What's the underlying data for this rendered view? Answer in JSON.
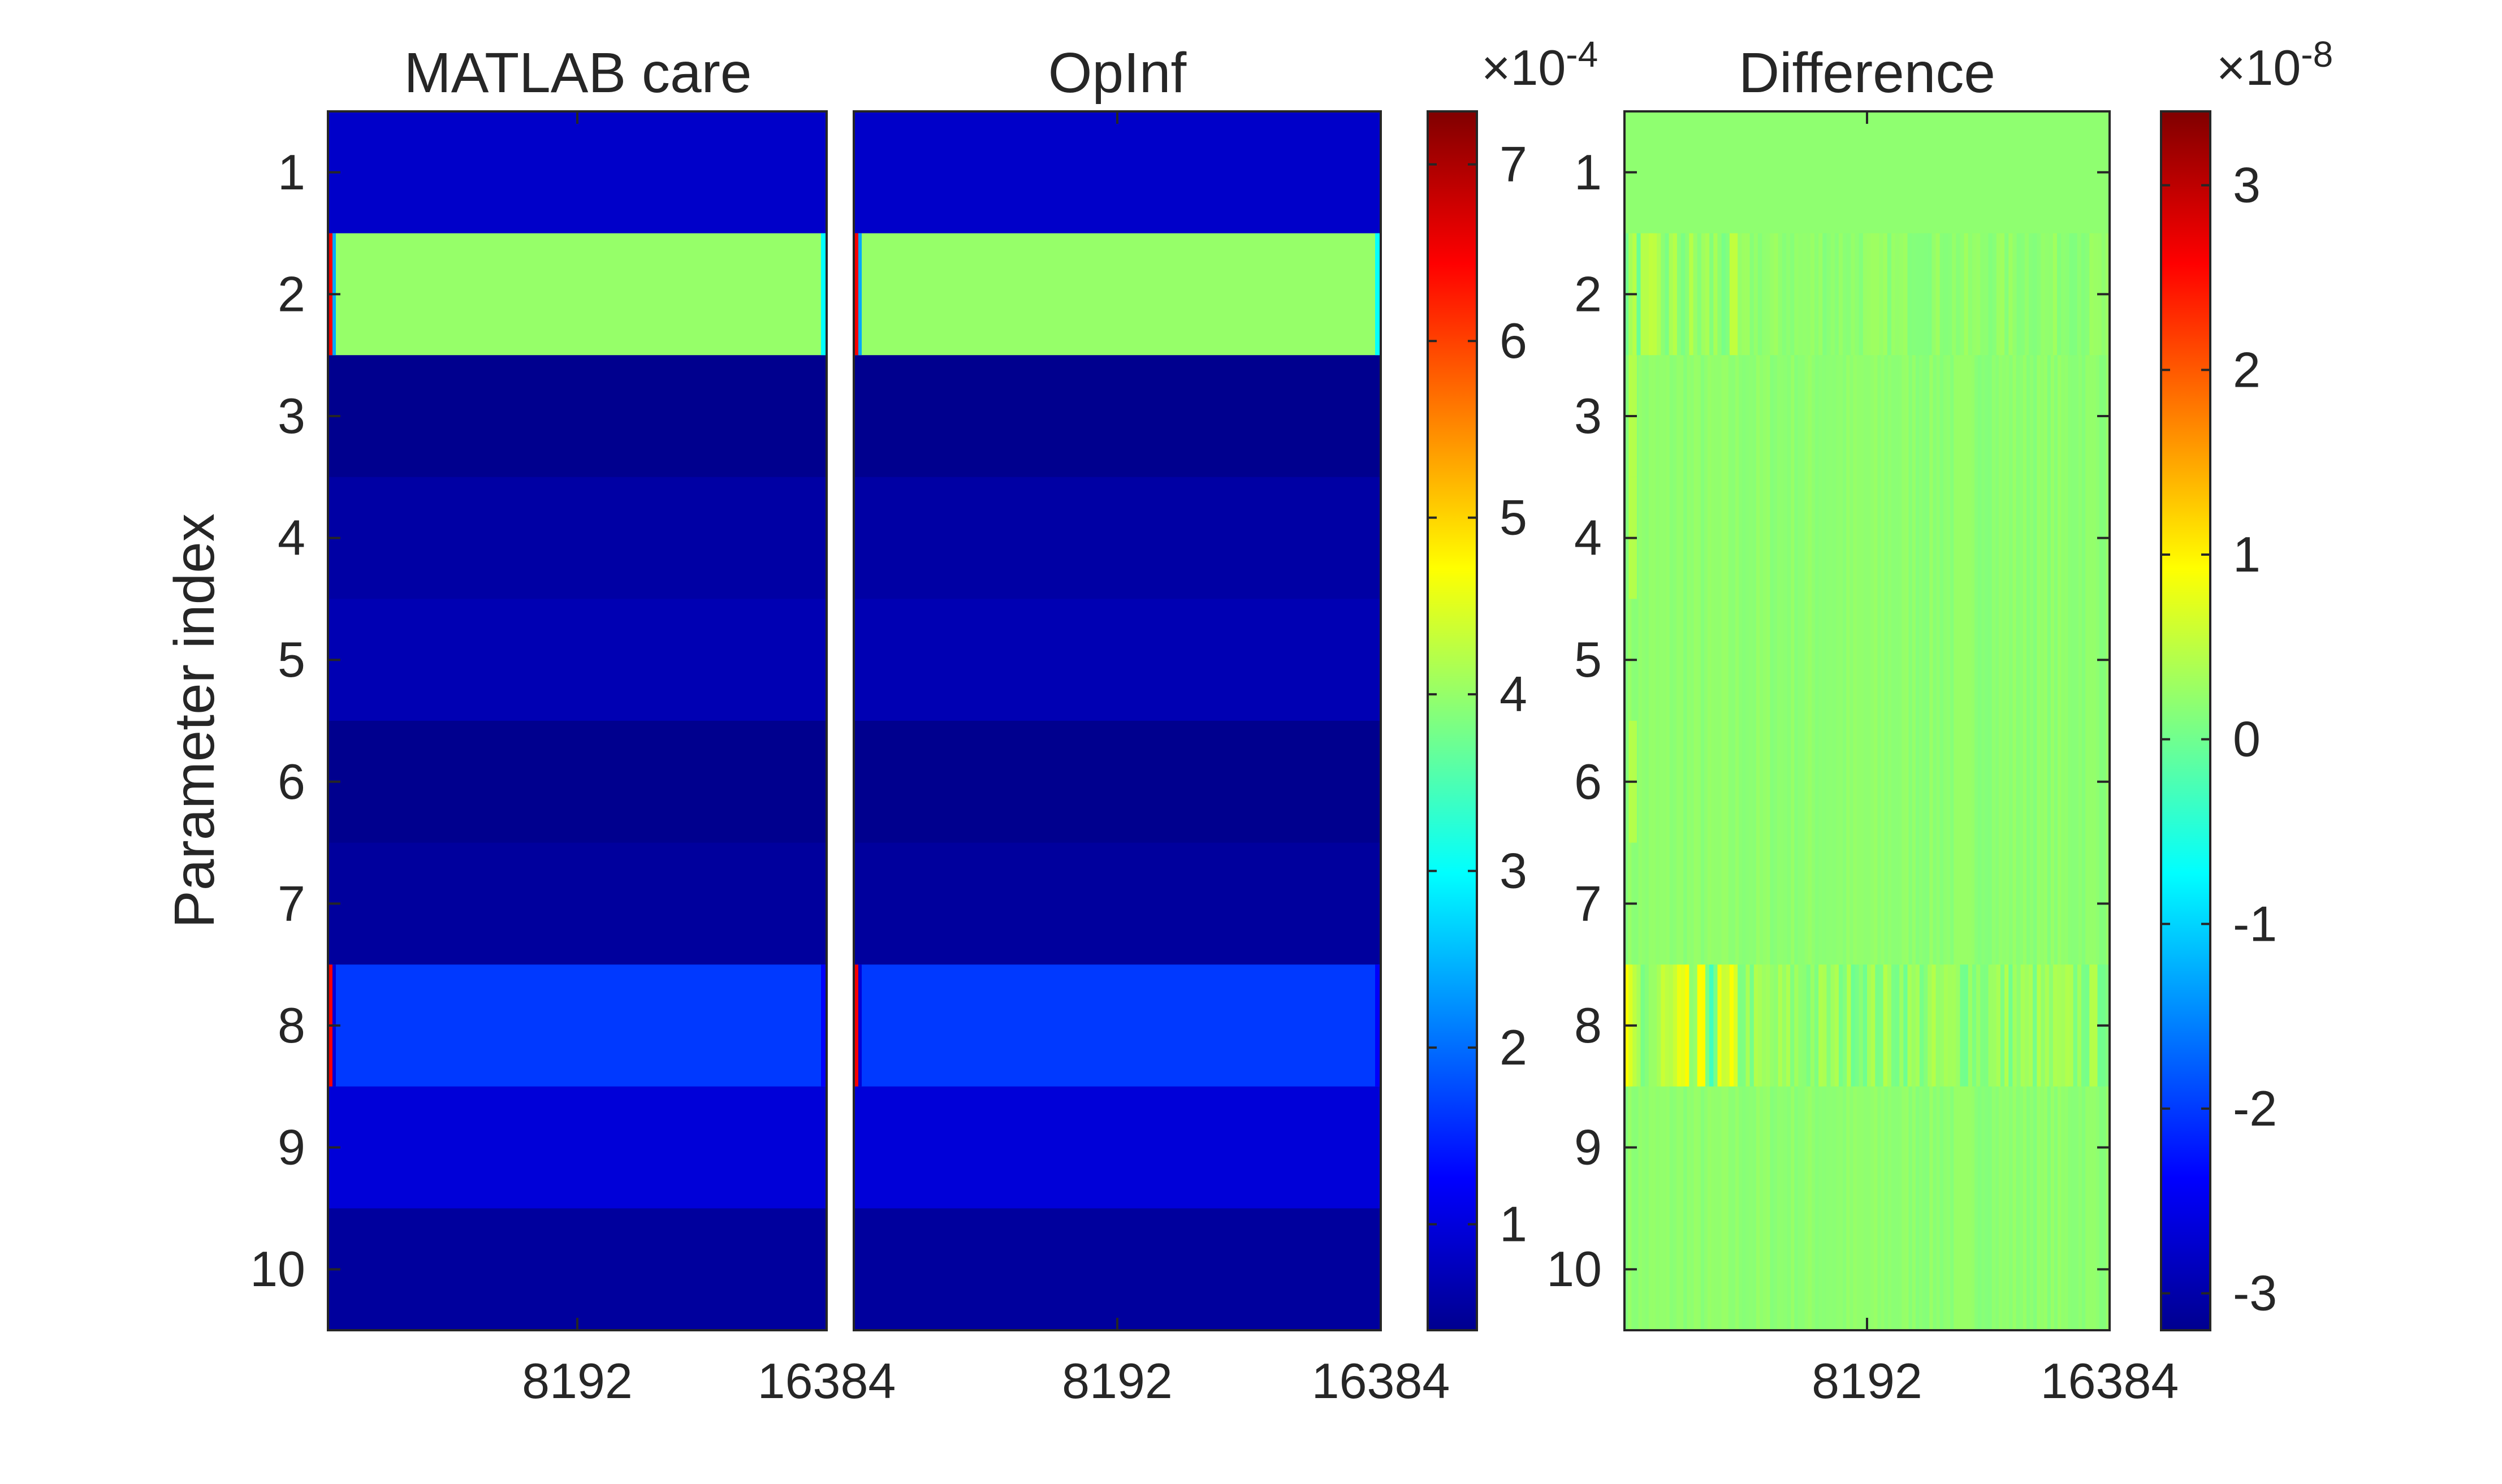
{
  "chart_data": [
    {
      "type": "heatmap",
      "title": "MATLAB care",
      "xlabel": "",
      "ylabel": "Parameter index",
      "x_ticks": [
        8192,
        16384
      ],
      "x_tick_labels": [
        "8192",
        "16384"
      ],
      "xlim": [
        0,
        16384
      ],
      "y_ticks": [
        1,
        2,
        3,
        4,
        5,
        6,
        7,
        8,
        9,
        10
      ],
      "y_tick_labels": [
        "1",
        "2",
        "3",
        "4",
        "5",
        "6",
        "7",
        "8",
        "9",
        "10"
      ],
      "colormap": "jet",
      "clim": [
        4e-05,
        0.00073
      ],
      "row_values": [
        9e-05,
        0.0004,
        5e-05,
        6.5e-05,
        7.5e-05,
        5e-05,
        6e-05,
        0.000165,
        0.0001,
        6e-05
      ],
      "edge_spike_rows": [
        2,
        8
      ],
      "edge_spike_value": 0.00065
    },
    {
      "type": "heatmap",
      "title": "OpInf",
      "xlabel": "",
      "ylabel": "",
      "x_ticks": [
        8192,
        16384
      ],
      "x_tick_labels": [
        "8192",
        "16384"
      ],
      "xlim": [
        0,
        16384
      ],
      "colormap": "jet",
      "clim": [
        4e-05,
        0.00073
      ],
      "row_values": [
        9e-05,
        0.0004,
        5e-05,
        6.5e-05,
        7.5e-05,
        5e-05,
        6e-05,
        0.000165,
        0.0001,
        6e-05
      ],
      "edge_spike_rows": [
        2,
        8
      ],
      "edge_spike_value": 0.00065
    },
    {
      "type": "heatmap",
      "title": "Difference",
      "xlabel": "",
      "ylabel": "",
      "x_ticks": [
        8192,
        16384
      ],
      "x_tick_labels": [
        "8192",
        "16384"
      ],
      "xlim": [
        0,
        16384
      ],
      "y_ticks": [
        1,
        2,
        3,
        4,
        5,
        6,
        7,
        8,
        9,
        10
      ],
      "y_tick_labels": [
        "1",
        "2",
        "3",
        "4",
        "5",
        "6",
        "7",
        "8",
        "9",
        "10"
      ],
      "colormap": "jet",
      "clim": [
        -3.2e-08,
        3.4e-08
      ],
      "background_value": 2e-09,
      "noisy_rows": [
        2,
        8
      ]
    }
  ],
  "colorbars": [
    {
      "scale_label": "×10",
      "scale_exponent": "-4",
      "ticks": [
        1,
        2,
        3,
        4,
        5,
        6,
        7
      ],
      "tick_labels": [
        "1",
        "2",
        "3",
        "4",
        "5",
        "6",
        "7"
      ],
      "range": [
        0.4,
        7.3
      ]
    },
    {
      "scale_label": "×10",
      "scale_exponent": "-8",
      "ticks": [
        -3,
        -2,
        -1,
        0,
        1,
        2,
        3
      ],
      "tick_labels": [
        "-3",
        "-2",
        "-1",
        "0",
        "1",
        "2",
        "3"
      ],
      "range": [
        -3.2,
        3.4
      ]
    }
  ]
}
